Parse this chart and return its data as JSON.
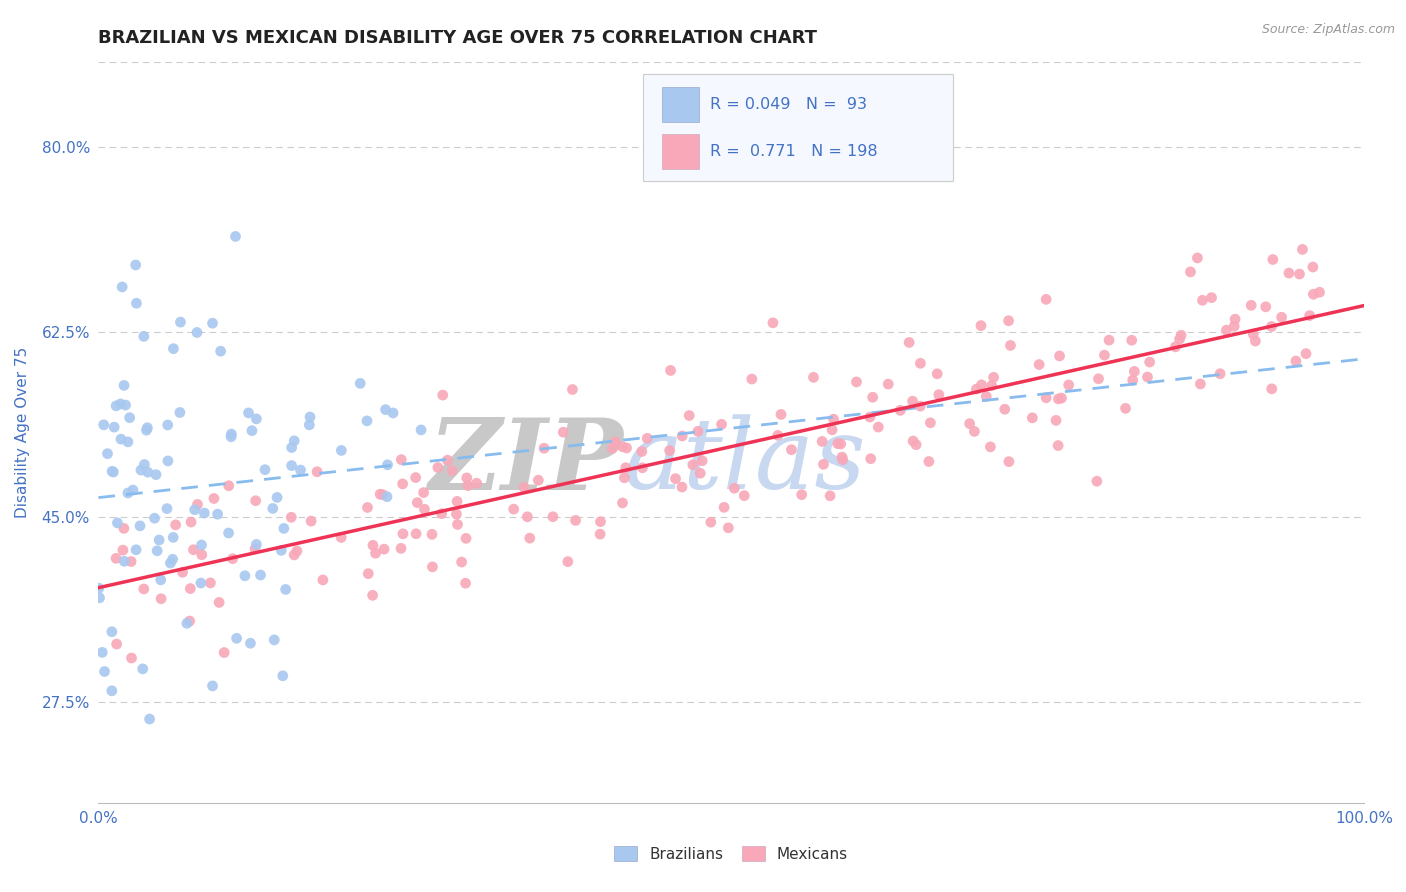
{
  "title": "BRAZILIAN VS MEXICAN DISABILITY AGE OVER 75 CORRELATION CHART",
  "source_text": "Source: ZipAtlas.com",
  "ylabel": "Disability Age Over 75",
  "watermark_zip": "ZIP",
  "watermark_atlas": "atlas",
  "xlim": [
    0.0,
    1.0
  ],
  "ylim": [
    0.18,
    0.88
  ],
  "xtick_labels": [
    "0.0%",
    "100.0%"
  ],
  "ytick_labels": [
    "27.5%",
    "45.0%",
    "62.5%",
    "80.0%"
  ],
  "ytick_values": [
    0.275,
    0.45,
    0.625,
    0.8
  ],
  "xtick_values": [
    0.0,
    1.0
  ],
  "color_brazilian": "#a8c8f0",
  "color_mexican": "#f8a8b8",
  "trendline_brazilian_color": "#88bbee",
  "trendline_mexican_color": "#ee3355",
  "grid_color": "#cccccc",
  "background_color": "#ffffff",
  "title_color": "#222222",
  "title_fontsize": 13,
  "axis_label_color": "#4472c4",
  "legend_box_facecolor": "#f5f8ff",
  "legend_box_edgecolor": "#cccccc",
  "source_color": "#999999",
  "watermark_zip_color": "#c8c8c8",
  "watermark_atlas_color": "#c8d8f0"
}
